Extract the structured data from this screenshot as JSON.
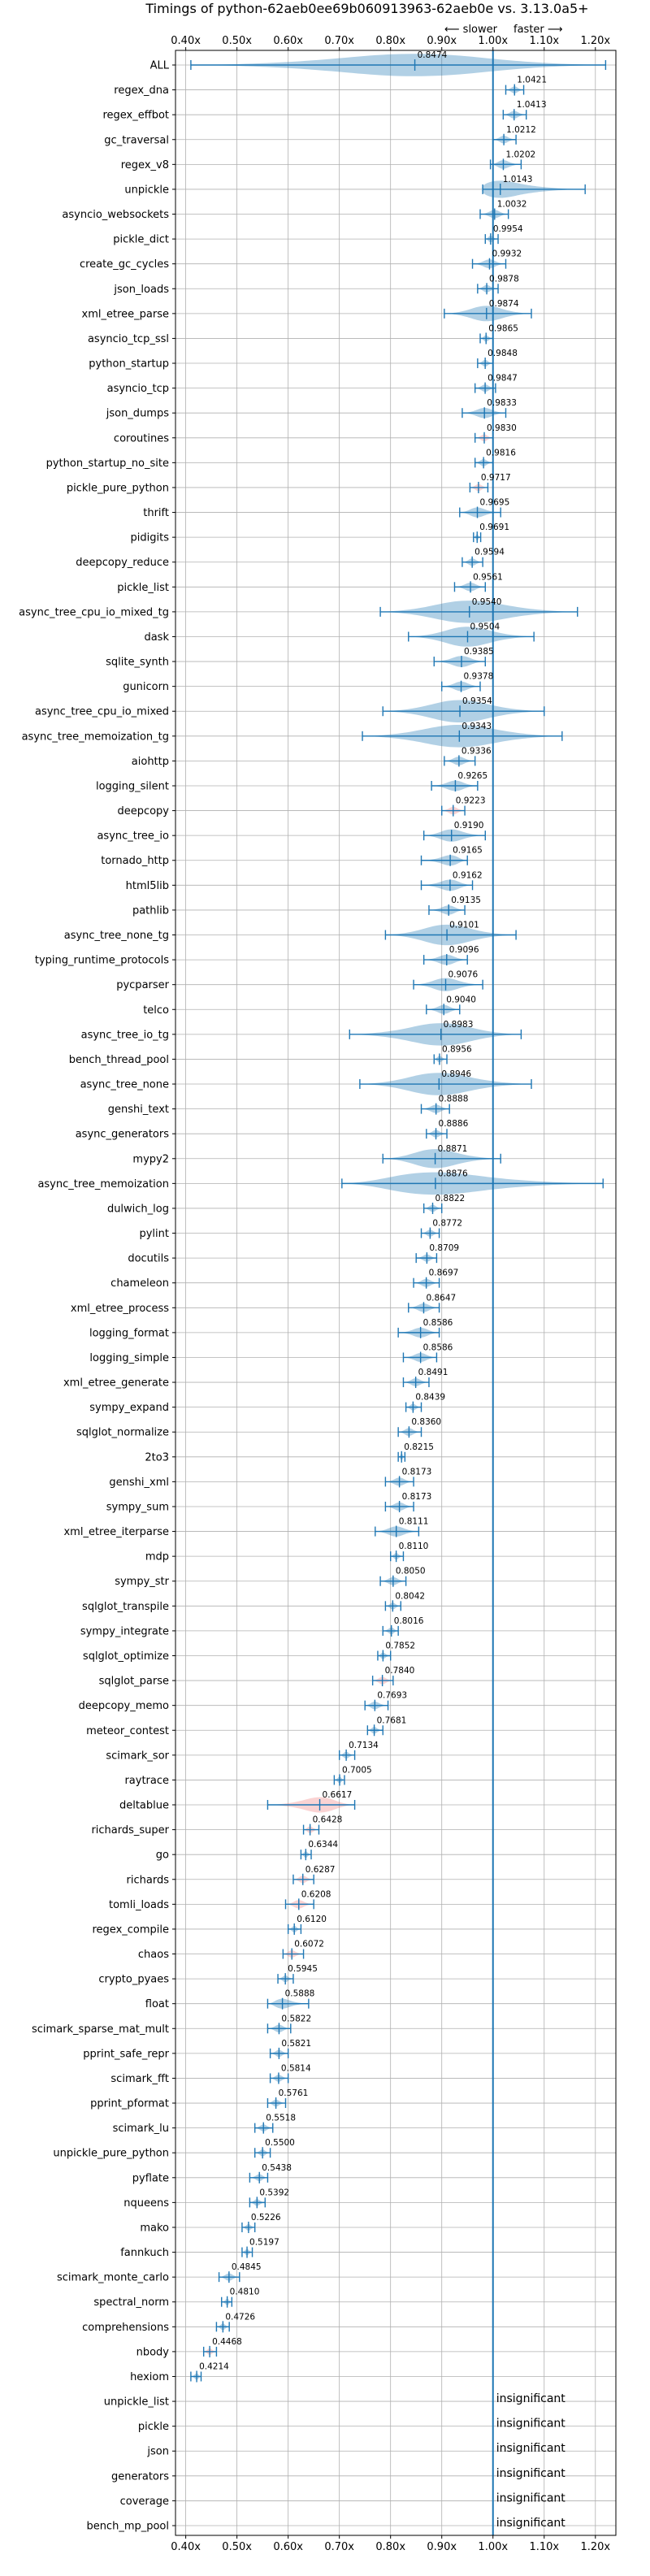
{
  "chart_data": {
    "type": "violin",
    "title": "Timings of python-62aeb0ee69b060913963-62aeb0e vs. 3.13.0a5+",
    "subtitle_left": "⟵ slower",
    "subtitle_right": "faster ⟶",
    "xlim": [
      0.38,
      1.24
    ],
    "xticks": [
      0.4,
      0.5,
      0.6,
      0.7,
      0.8,
      0.9,
      1.0,
      1.1,
      1.2
    ],
    "xtick_labels": [
      "0.40x",
      "0.50x",
      "0.60x",
      "0.70x",
      "0.80x",
      "0.90x",
      "1.00x",
      "1.10x",
      "1.20x"
    ],
    "reference_line": 1.0,
    "grid": true,
    "colors": {
      "normal": "#1f77b4",
      "highlight": "#f08080"
    },
    "benchmarks": [
      {
        "name": "ALL",
        "value": 0.8474,
        "label": "0.8474",
        "min": 0.41,
        "max": 1.22,
        "hl": false
      },
      {
        "name": "regex_dna",
        "value": 1.0421,
        "label": "1.0421",
        "min": 1.025,
        "max": 1.06,
        "hl": false
      },
      {
        "name": "regex_effbot",
        "value": 1.0413,
        "label": "1.0413",
        "min": 1.02,
        "max": 1.065,
        "hl": false
      },
      {
        "name": "gc_traversal",
        "value": 1.0212,
        "label": "1.0212",
        "min": 1.0,
        "max": 1.045,
        "hl": false
      },
      {
        "name": "regex_v8",
        "value": 1.0202,
        "label": "1.0202",
        "min": 0.995,
        "max": 1.055,
        "hl": false
      },
      {
        "name": "unpickle",
        "value": 1.0143,
        "label": "1.0143",
        "min": 0.98,
        "max": 1.18,
        "hl": false
      },
      {
        "name": "asyncio_websockets",
        "value": 1.0032,
        "label": "1.0032",
        "min": 0.975,
        "max": 1.03,
        "hl": false
      },
      {
        "name": "pickle_dict",
        "value": 0.9954,
        "label": "0.9954",
        "min": 0.985,
        "max": 1.01,
        "hl": false
      },
      {
        "name": "create_gc_cycles",
        "value": 0.9932,
        "label": "0.9932",
        "min": 0.96,
        "max": 1.025,
        "hl": false
      },
      {
        "name": "json_loads",
        "value": 0.9878,
        "label": "0.9878",
        "min": 0.97,
        "max": 1.01,
        "hl": false
      },
      {
        "name": "xml_etree_parse",
        "value": 0.9874,
        "label": "0.9874",
        "min": 0.905,
        "max": 1.075,
        "hl": false
      },
      {
        "name": "asyncio_tcp_ssl",
        "value": 0.9865,
        "label": "0.9865",
        "min": 0.975,
        "max": 1.0,
        "hl": false
      },
      {
        "name": "python_startup",
        "value": 0.9848,
        "label": "0.9848",
        "min": 0.97,
        "max": 1.0,
        "hl": false
      },
      {
        "name": "asyncio_tcp",
        "value": 0.9847,
        "label": "0.9847",
        "min": 0.965,
        "max": 1.005,
        "hl": false
      },
      {
        "name": "json_dumps",
        "value": 0.9833,
        "label": "0.9833",
        "min": 0.94,
        "max": 1.025,
        "hl": false
      },
      {
        "name": "coroutines",
        "value": 0.983,
        "label": "0.9830",
        "min": 0.965,
        "max": 1.0,
        "hl": true
      },
      {
        "name": "python_startup_no_site",
        "value": 0.9816,
        "label": "0.9816",
        "min": 0.965,
        "max": 1.0,
        "hl": false
      },
      {
        "name": "pickle_pure_python",
        "value": 0.9717,
        "label": "0.9717",
        "min": 0.955,
        "max": 0.99,
        "hl": true
      },
      {
        "name": "thrift",
        "value": 0.9695,
        "label": "0.9695",
        "min": 0.935,
        "max": 1.015,
        "hl": false
      },
      {
        "name": "pidigits",
        "value": 0.9691,
        "label": "0.9691",
        "min": 0.962,
        "max": 0.976,
        "hl": false
      },
      {
        "name": "deepcopy_reduce",
        "value": 0.9594,
        "label": "0.9594",
        "min": 0.94,
        "max": 0.98,
        "hl": false
      },
      {
        "name": "pickle_list",
        "value": 0.9561,
        "label": "0.9561",
        "min": 0.925,
        "max": 0.985,
        "hl": false
      },
      {
        "name": "async_tree_cpu_io_mixed_tg",
        "value": 0.954,
        "label": "0.9540",
        "min": 0.78,
        "max": 1.165,
        "hl": false
      },
      {
        "name": "dask",
        "value": 0.9504,
        "label": "0.9504",
        "min": 0.835,
        "max": 1.08,
        "hl": false
      },
      {
        "name": "sqlite_synth",
        "value": 0.9385,
        "label": "0.9385",
        "min": 0.885,
        "max": 0.985,
        "hl": false
      },
      {
        "name": "gunicorn",
        "value": 0.9378,
        "label": "0.9378",
        "min": 0.9,
        "max": 0.975,
        "hl": false
      },
      {
        "name": "async_tree_cpu_io_mixed",
        "value": 0.9354,
        "label": "0.9354",
        "min": 0.785,
        "max": 1.1,
        "hl": false
      },
      {
        "name": "async_tree_memoization_tg",
        "value": 0.9343,
        "label": "0.9343",
        "min": 0.745,
        "max": 1.135,
        "hl": false
      },
      {
        "name": "aiohttp",
        "value": 0.9336,
        "label": "0.9336",
        "min": 0.905,
        "max": 0.965,
        "hl": false
      },
      {
        "name": "logging_silent",
        "value": 0.9265,
        "label": "0.9265",
        "min": 0.88,
        "max": 0.97,
        "hl": false
      },
      {
        "name": "deepcopy",
        "value": 0.9223,
        "label": "0.9223",
        "min": 0.9,
        "max": 0.945,
        "hl": true
      },
      {
        "name": "async_tree_io",
        "value": 0.919,
        "label": "0.9190",
        "min": 0.865,
        "max": 0.985,
        "hl": false
      },
      {
        "name": "tornado_http",
        "value": 0.9165,
        "label": "0.9165",
        "min": 0.86,
        "max": 0.95,
        "hl": false
      },
      {
        "name": "html5lib",
        "value": 0.9162,
        "label": "0.9162",
        "min": 0.86,
        "max": 0.96,
        "hl": false
      },
      {
        "name": "pathlib",
        "value": 0.9135,
        "label": "0.9135",
        "min": 0.875,
        "max": 0.945,
        "hl": false
      },
      {
        "name": "async_tree_none_tg",
        "value": 0.9101,
        "label": "0.9101",
        "min": 0.79,
        "max": 1.045,
        "hl": false
      },
      {
        "name": "typing_runtime_protocols",
        "value": 0.9096,
        "label": "0.9096",
        "min": 0.865,
        "max": 0.95,
        "hl": false
      },
      {
        "name": "pycparser",
        "value": 0.9076,
        "label": "0.9076",
        "min": 0.845,
        "max": 0.98,
        "hl": false
      },
      {
        "name": "telco",
        "value": 0.904,
        "label": "0.9040",
        "min": 0.87,
        "max": 0.935,
        "hl": false
      },
      {
        "name": "async_tree_io_tg",
        "value": 0.8983,
        "label": "0.8983",
        "min": 0.72,
        "max": 1.055,
        "hl": false
      },
      {
        "name": "bench_thread_pool",
        "value": 0.8956,
        "label": "0.8956",
        "min": 0.885,
        "max": 0.91,
        "hl": false
      },
      {
        "name": "async_tree_none",
        "value": 0.8946,
        "label": "0.8946",
        "min": 0.74,
        "max": 1.075,
        "hl": false
      },
      {
        "name": "genshi_text",
        "value": 0.8888,
        "label": "0.8888",
        "min": 0.86,
        "max": 0.915,
        "hl": false
      },
      {
        "name": "async_generators",
        "value": 0.8886,
        "label": "0.8886",
        "min": 0.87,
        "max": 0.91,
        "hl": false
      },
      {
        "name": "mypy2",
        "value": 0.8871,
        "label": "0.8871",
        "min": 0.785,
        "max": 1.015,
        "hl": false
      },
      {
        "name": "async_tree_memoization",
        "value": 0.8876,
        "label": "0.8876",
        "min": 0.705,
        "max": 1.215,
        "hl": false
      },
      {
        "name": "dulwich_log",
        "value": 0.8822,
        "label": "0.8822",
        "min": 0.865,
        "max": 0.9,
        "hl": false
      },
      {
        "name": "pylint",
        "value": 0.8772,
        "label": "0.8772",
        "min": 0.86,
        "max": 0.895,
        "hl": false
      },
      {
        "name": "docutils",
        "value": 0.8709,
        "label": "0.8709",
        "min": 0.85,
        "max": 0.89,
        "hl": false
      },
      {
        "name": "chameleon",
        "value": 0.8697,
        "label": "0.8697",
        "min": 0.845,
        "max": 0.895,
        "hl": false
      },
      {
        "name": "xml_etree_process",
        "value": 0.8647,
        "label": "0.8647",
        "min": 0.835,
        "max": 0.895,
        "hl": false
      },
      {
        "name": "logging_format",
        "value": 0.8586,
        "label": "0.8586",
        "min": 0.815,
        "max": 0.895,
        "hl": false
      },
      {
        "name": "logging_simple",
        "value": 0.8586,
        "label": "0.8586",
        "min": 0.825,
        "max": 0.89,
        "hl": false
      },
      {
        "name": "xml_etree_generate",
        "value": 0.8491,
        "label": "0.8491",
        "min": 0.825,
        "max": 0.875,
        "hl": false
      },
      {
        "name": "sympy_expand",
        "value": 0.8439,
        "label": "0.8439",
        "min": 0.83,
        "max": 0.86,
        "hl": false
      },
      {
        "name": "sqlglot_normalize",
        "value": 0.836,
        "label": "0.8360",
        "min": 0.815,
        "max": 0.86,
        "hl": false
      },
      {
        "name": "2to3",
        "value": 0.8215,
        "label": "0.8215",
        "min": 0.815,
        "max": 0.828,
        "hl": false
      },
      {
        "name": "genshi_xml",
        "value": 0.8173,
        "label": "0.8173",
        "min": 0.79,
        "max": 0.845,
        "hl": false
      },
      {
        "name": "sympy_sum",
        "value": 0.8173,
        "label": "0.8173",
        "min": 0.79,
        "max": 0.845,
        "hl": false
      },
      {
        "name": "xml_etree_iterparse",
        "value": 0.8111,
        "label": "0.8111",
        "min": 0.77,
        "max": 0.855,
        "hl": false
      },
      {
        "name": "mdp",
        "value": 0.811,
        "label": "0.8110",
        "min": 0.8,
        "max": 0.825,
        "hl": false
      },
      {
        "name": "sympy_str",
        "value": 0.805,
        "label": "0.8050",
        "min": 0.78,
        "max": 0.83,
        "hl": false
      },
      {
        "name": "sqlglot_transpile",
        "value": 0.8042,
        "label": "0.8042",
        "min": 0.79,
        "max": 0.82,
        "hl": false
      },
      {
        "name": "sympy_integrate",
        "value": 0.8016,
        "label": "0.8016",
        "min": 0.785,
        "max": 0.815,
        "hl": false
      },
      {
        "name": "sqlglot_optimize",
        "value": 0.7852,
        "label": "0.7852",
        "min": 0.775,
        "max": 0.8,
        "hl": false
      },
      {
        "name": "sqlglot_parse",
        "value": 0.784,
        "label": "0.7840",
        "min": 0.765,
        "max": 0.805,
        "hl": true
      },
      {
        "name": "deepcopy_memo",
        "value": 0.7693,
        "label": "0.7693",
        "min": 0.75,
        "max": 0.795,
        "hl": false
      },
      {
        "name": "meteor_contest",
        "value": 0.7681,
        "label": "0.7681",
        "min": 0.755,
        "max": 0.785,
        "hl": false
      },
      {
        "name": "scimark_sor",
        "value": 0.7134,
        "label": "0.7134",
        "min": 0.7,
        "max": 0.73,
        "hl": false
      },
      {
        "name": "raytrace",
        "value": 0.7005,
        "label": "0.7005",
        "min": 0.69,
        "max": 0.71,
        "hl": false
      },
      {
        "name": "deltablue",
        "value": 0.6617,
        "label": "0.6617",
        "min": 0.56,
        "max": 0.73,
        "hl": true
      },
      {
        "name": "richards_super",
        "value": 0.6428,
        "label": "0.6428",
        "min": 0.63,
        "max": 0.66,
        "hl": true
      },
      {
        "name": "go",
        "value": 0.6344,
        "label": "0.6344",
        "min": 0.625,
        "max": 0.645,
        "hl": false
      },
      {
        "name": "richards",
        "value": 0.6287,
        "label": "0.6287",
        "min": 0.61,
        "max": 0.65,
        "hl": true
      },
      {
        "name": "tomli_loads",
        "value": 0.6208,
        "label": "0.6208",
        "min": 0.595,
        "max": 0.65,
        "hl": true
      },
      {
        "name": "regex_compile",
        "value": 0.612,
        "label": "0.6120",
        "min": 0.6,
        "max": 0.625,
        "hl": false
      },
      {
        "name": "chaos",
        "value": 0.6072,
        "label": "0.6072",
        "min": 0.59,
        "max": 0.63,
        "hl": true
      },
      {
        "name": "crypto_pyaes",
        "value": 0.5945,
        "label": "0.5945",
        "min": 0.58,
        "max": 0.61,
        "hl": false
      },
      {
        "name": "float",
        "value": 0.5888,
        "label": "0.5888",
        "min": 0.56,
        "max": 0.64,
        "hl": false
      },
      {
        "name": "scimark_sparse_mat_mult",
        "value": 0.5822,
        "label": "0.5822",
        "min": 0.56,
        "max": 0.605,
        "hl": false
      },
      {
        "name": "pprint_safe_repr",
        "value": 0.5821,
        "label": "0.5821",
        "min": 0.565,
        "max": 0.6,
        "hl": false
      },
      {
        "name": "scimark_fft",
        "value": 0.5814,
        "label": "0.5814",
        "min": 0.565,
        "max": 0.6,
        "hl": false
      },
      {
        "name": "pprint_pformat",
        "value": 0.5761,
        "label": "0.5761",
        "min": 0.56,
        "max": 0.595,
        "hl": false
      },
      {
        "name": "scimark_lu",
        "value": 0.5518,
        "label": "0.5518",
        "min": 0.535,
        "max": 0.57,
        "hl": false
      },
      {
        "name": "unpickle_pure_python",
        "value": 0.55,
        "label": "0.5500",
        "min": 0.535,
        "max": 0.565,
        "hl": false
      },
      {
        "name": "pyflate",
        "value": 0.5438,
        "label": "0.5438",
        "min": 0.525,
        "max": 0.56,
        "hl": false
      },
      {
        "name": "nqueens",
        "value": 0.5392,
        "label": "0.5392",
        "min": 0.525,
        "max": 0.555,
        "hl": false
      },
      {
        "name": "mako",
        "value": 0.5226,
        "label": "0.5226",
        "min": 0.51,
        "max": 0.535,
        "hl": false
      },
      {
        "name": "fannkuch",
        "value": 0.5197,
        "label": "0.5197",
        "min": 0.51,
        "max": 0.53,
        "hl": false
      },
      {
        "name": "scimark_monte_carlo",
        "value": 0.4845,
        "label": "0.4845",
        "min": 0.465,
        "max": 0.505,
        "hl": false
      },
      {
        "name": "spectral_norm",
        "value": 0.481,
        "label": "0.4810",
        "min": 0.47,
        "max": 0.49,
        "hl": false
      },
      {
        "name": "comprehensions",
        "value": 0.4726,
        "label": "0.4726",
        "min": 0.46,
        "max": 0.485,
        "hl": false
      },
      {
        "name": "nbody",
        "value": 0.4468,
        "label": "0.4468",
        "min": 0.435,
        "max": 0.46,
        "hl": true
      },
      {
        "name": "hexiom",
        "value": 0.4214,
        "label": "0.4214",
        "min": 0.41,
        "max": 0.43,
        "hl": false
      },
      {
        "name": "unpickle_list",
        "value": null,
        "label": "insignificant"
      },
      {
        "name": "pickle",
        "value": null,
        "label": "insignificant"
      },
      {
        "name": "json",
        "value": null,
        "label": "insignificant"
      },
      {
        "name": "generators",
        "value": null,
        "label": "insignificant"
      },
      {
        "name": "coverage",
        "value": null,
        "label": "insignificant"
      },
      {
        "name": "bench_mp_pool",
        "value": null,
        "label": "insignificant"
      }
    ]
  }
}
